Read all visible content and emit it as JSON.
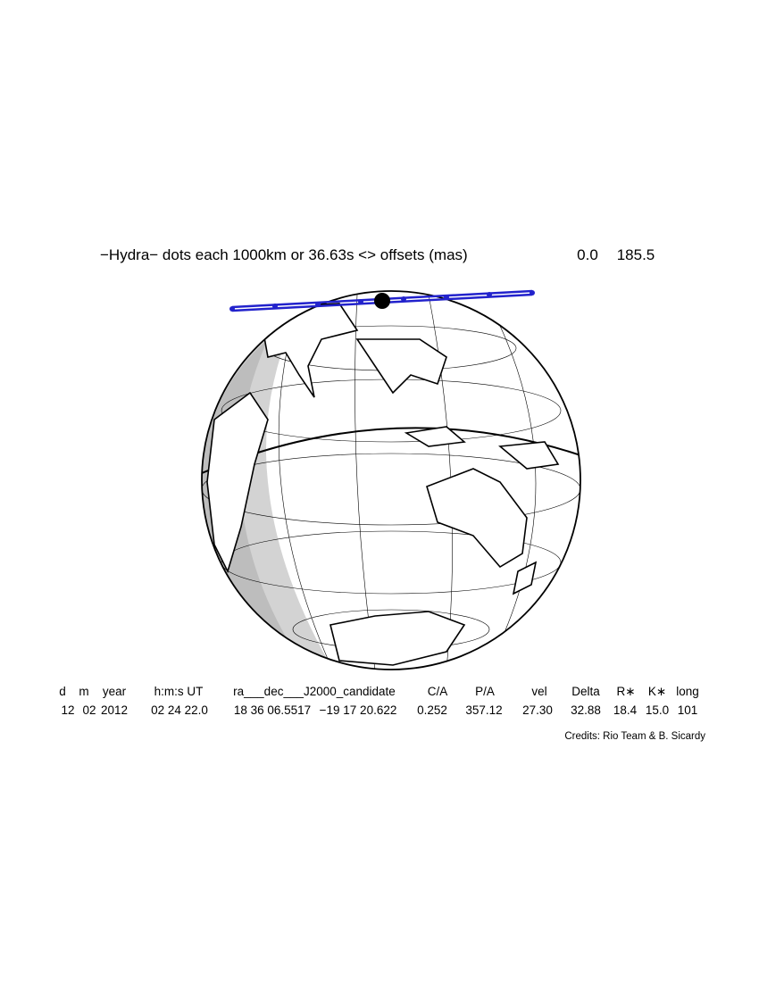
{
  "title": "−Hydra− dots each 1000km or 36.63s <> offsets (mas)",
  "offsets": [
    "0.0",
    "185.5"
  ],
  "table": {
    "header": [
      "d",
      "m",
      "year",
      "h:m:s UT",
      "ra___dec___J2000_candidate",
      "C/A",
      "P/A",
      "vel",
      "Delta",
      "R∗",
      "K∗",
      "long"
    ],
    "values": [
      "12",
      "02",
      "2012",
      "02 24 22.0",
      "18 36 06.5517",
      "−19 17 20.622",
      "0.252",
      "357.12",
      "27.30",
      "32.88",
      "18.4",
      "15.0",
      "101"
    ]
  },
  "credits": "Credits: Rio Team & B. Sicardy"
}
